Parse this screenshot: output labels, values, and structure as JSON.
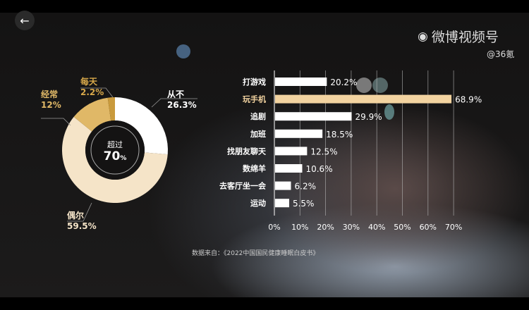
{
  "header": {
    "back_icon": "arrow-left-icon",
    "watermark": "微博视频号",
    "account": "@36氪"
  },
  "colors": {
    "white": "#ffffff",
    "cream": "#f5e4c8",
    "tan": "#e0b867",
    "gold": "#c99a3c",
    "highlight_bar": "#f2d3a0"
  },
  "chart_data": [
    {
      "type": "pie",
      "donut": true,
      "slices": [
        {
          "label": "从不",
          "value": 26.3,
          "display": "26.3%"
        },
        {
          "label": "偶尔",
          "value": 59.5,
          "display": "59.5%"
        },
        {
          "label": "经常",
          "value": 12,
          "display": "12%"
        },
        {
          "label": "每天",
          "value": 2.2,
          "display": "2.2%"
        }
      ],
      "center_label": "超过",
      "center_value": "70",
      "center_unit": "%"
    },
    {
      "type": "bar",
      "orientation": "horizontal",
      "categories": [
        "打游戏",
        "玩手机",
        "追剧",
        "加班",
        "找朋友聊天",
        "数绵羊",
        "去客厅坐一会",
        "运动"
      ],
      "values": [
        20.2,
        68.9,
        29.9,
        18.5,
        12.5,
        10.6,
        6.2,
        5.5
      ],
      "highlight": "玩手机",
      "xlim": [
        0,
        70
      ],
      "xticks": [
        "0%",
        "10%",
        "20%",
        "30%",
        "40%",
        "50%",
        "60%",
        "70%"
      ],
      "grid": true
    }
  ],
  "source": "数据来自：《2022中国国民健康睡眠白皮书》"
}
